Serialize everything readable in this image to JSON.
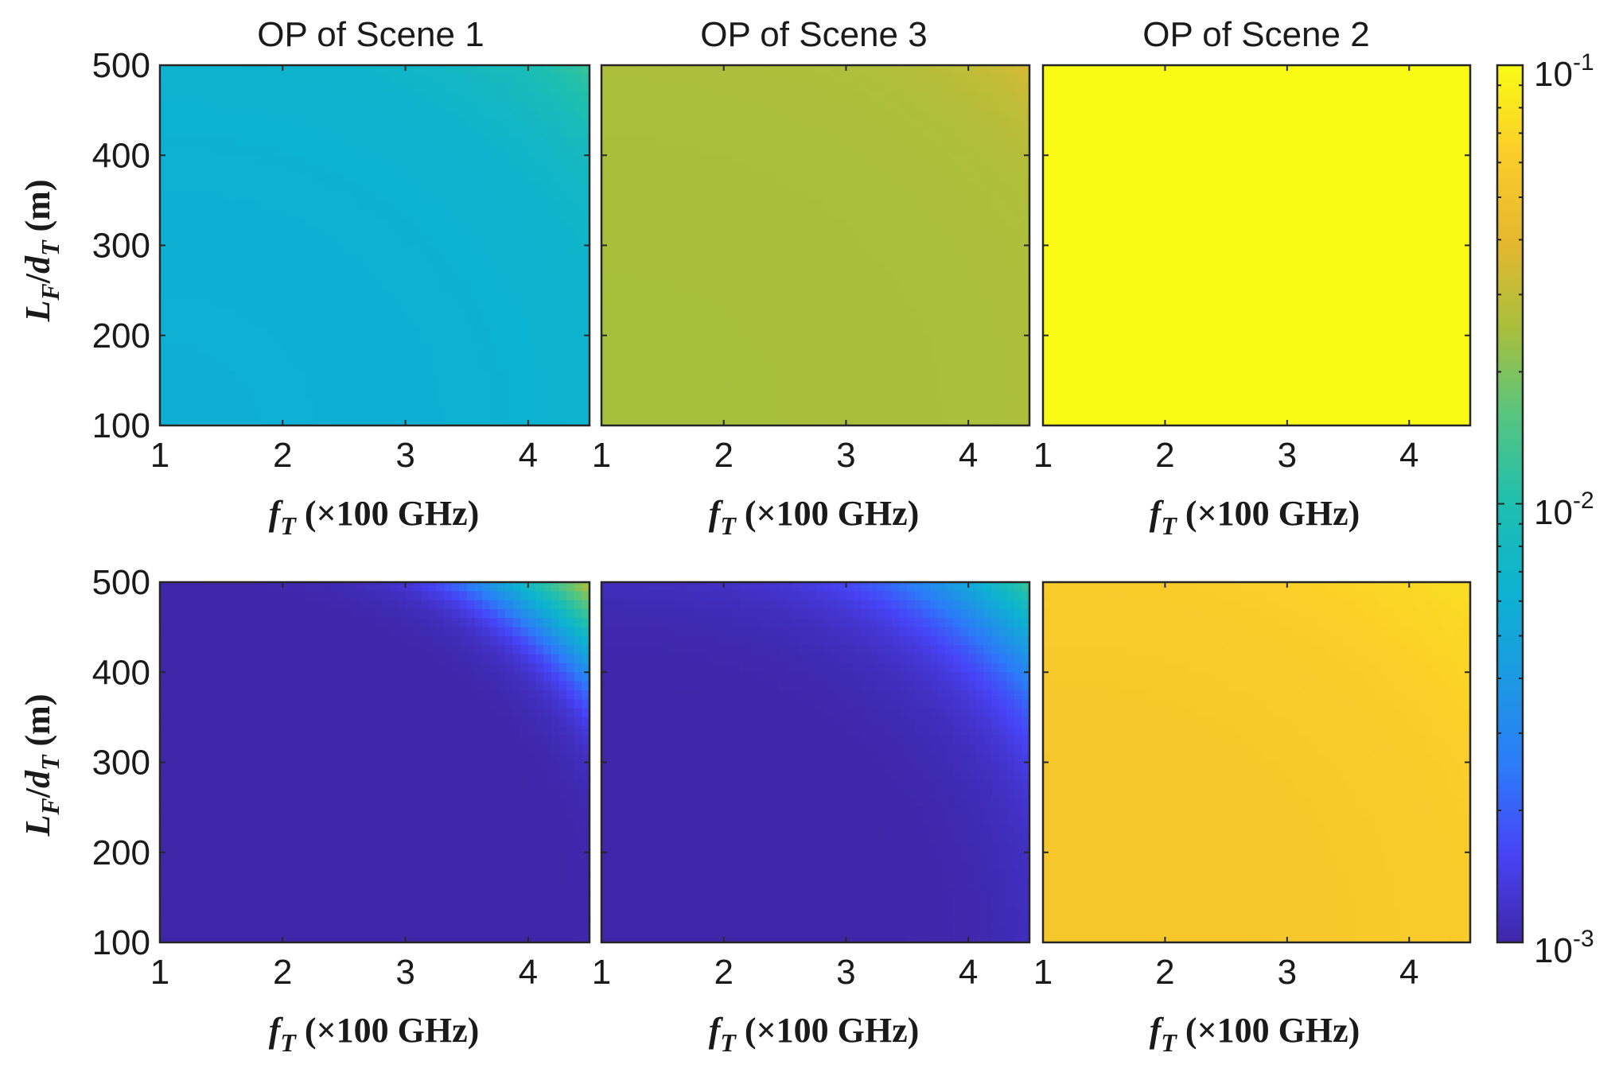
{
  "chart_data": {
    "type": "heatmap",
    "x_range": [
      1,
      4.5
    ],
    "y_range": [
      100,
      500
    ],
    "x_ticks": [
      "1",
      "2",
      "3",
      "4"
    ],
    "y_ticks": [
      "100",
      "200",
      "300",
      "400",
      "500"
    ],
    "xlabel": {
      "main": "f",
      "sub": "T",
      "rest": " (×100 GHz)"
    },
    "ylabel": {
      "L": "L",
      "Lsub": "F",
      "slash": "/",
      "d": "d",
      "dsub": "T",
      "unit": " (m)"
    },
    "colorbar": {
      "scale": "log",
      "range": [
        0.001,
        0.1
      ],
      "colormap": "parula",
      "ticks": [
        {
          "value": 0.1,
          "base": "10",
          "exp": "-1"
        },
        {
          "value": 0.01,
          "base": "10",
          "exp": "-2"
        },
        {
          "value": 0.001,
          "base": "10",
          "exp": "-3"
        }
      ]
    },
    "column_titles": [
      "OP of Scene 1",
      "OP of Scene 3",
      "OP of Scene 2"
    ],
    "panels": [
      {
        "row": 0,
        "col": 0,
        "model": "radial",
        "low": 0.006,
        "high": 0.012,
        "r0": 1.5,
        "w": 0.25,
        "corner_value": 0.035
      },
      {
        "row": 0,
        "col": 1,
        "model": "radial",
        "low": 0.025,
        "high": 0.03,
        "r0": 1.55,
        "w": 0.25,
        "corner_value": 0.065
      },
      {
        "row": 0,
        "col": 2,
        "model": "uniform",
        "value": 0.1
      },
      {
        "row": 1,
        "col": 0,
        "model": "radial",
        "low": 0.001,
        "high": 0.004,
        "r0": 1.22,
        "w": 0.05,
        "corner_value": 0.03
      },
      {
        "row": 1,
        "col": 1,
        "model": "radial",
        "low": 0.001,
        "high": 0.004,
        "r0": 1.23,
        "w": 0.1,
        "corner_value": 0.02
      },
      {
        "row": 1,
        "col": 2,
        "model": "uniform",
        "value": 0.055,
        "corner_value": 0.075
      }
    ]
  }
}
